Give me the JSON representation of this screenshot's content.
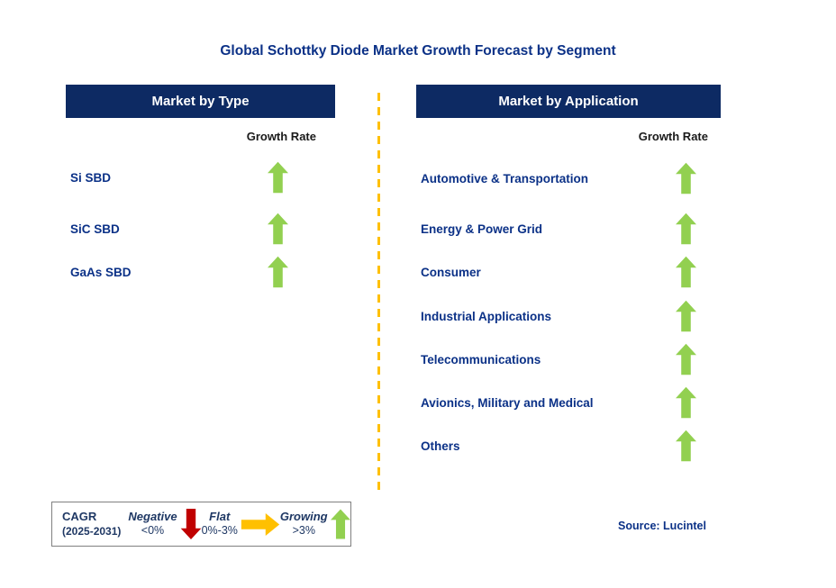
{
  "title": "Global Schottky Diode Market Growth Forecast by Segment",
  "left_panel": {
    "header": "Market by Type",
    "growth_rate_label": "Growth Rate",
    "items": [
      {
        "label": "Si SBD",
        "growth": "up"
      },
      {
        "label": "SiC SBD",
        "growth": "up"
      },
      {
        "label": "GaAs SBD",
        "growth": "up"
      }
    ]
  },
  "right_panel": {
    "header": "Market by Application",
    "growth_rate_label": "Growth Rate",
    "items": [
      {
        "label": "Automotive & Transportation",
        "growth": "up"
      },
      {
        "label": "Energy & Power Grid",
        "growth": "up"
      },
      {
        "label": "Consumer",
        "growth": "up"
      },
      {
        "label": "Industrial Applications",
        "growth": "up"
      },
      {
        "label": "Telecommunications",
        "growth": "up"
      },
      {
        "label": "Avionics, Military and Medical",
        "growth": "up"
      },
      {
        "label": "Others",
        "growth": "up"
      }
    ]
  },
  "legend": {
    "title_line1": "CAGR",
    "title_line2": "(2025-2031)",
    "entries": [
      {
        "label": "Negative",
        "range": "<0%",
        "arrow": "down",
        "color": "#C00000"
      },
      {
        "label": "Flat",
        "range": "0%-3%",
        "arrow": "right",
        "color": "#FFC000"
      },
      {
        "label": "Growing",
        "range": ">3%",
        "arrow": "up",
        "color": "#92D050"
      }
    ]
  },
  "source": "Source: Lucintel",
  "colors": {
    "header_bg": "#0D2A63",
    "header_text": "#FFFFFF",
    "label_navy": "#0B3187",
    "growth_rate_text": "#1A1A1A",
    "arrow_green": "#92D050",
    "arrow_red": "#C00000",
    "arrow_yellow": "#FFC000",
    "divider": "#FFC000",
    "legend_text": "#1F3864",
    "legend_border": "#808080"
  }
}
